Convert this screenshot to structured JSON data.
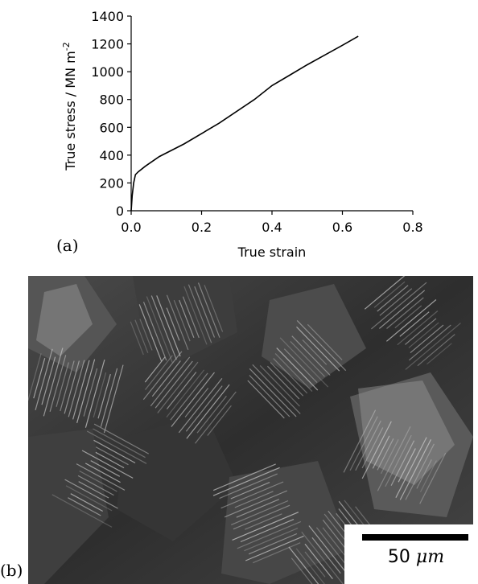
{
  "chart_data": {
    "type": "line",
    "xlabel": "True strain",
    "ylabel": "True stress / MN m",
    "ylabel_exponent": "-2",
    "xlim": [
      0.0,
      0.8
    ],
    "ylim": [
      0,
      1400
    ],
    "xticks": [
      "0.0",
      "0.2",
      "0.4",
      "0.6",
      "0.8"
    ],
    "yticks": [
      "0",
      "200",
      "400",
      "600",
      "800",
      "1000",
      "1200",
      "1400"
    ],
    "grid": false,
    "series": [
      {
        "x": [
          0.0,
          0.003,
          0.007,
          0.012,
          0.02,
          0.04,
          0.08,
          0.15,
          0.25,
          0.35,
          0.4,
          0.45,
          0.5,
          0.55,
          0.6,
          0.645
        ],
        "y": [
          0,
          110,
          200,
          260,
          280,
          320,
          390,
          480,
          630,
          800,
          900,
          975,
          1050,
          1120,
          1190,
          1255
        ]
      }
    ]
  },
  "labels": {
    "panel_a": "(a)",
    "panel_b": "(b)",
    "scalebar_value": "50",
    "scalebar_unit": "μm"
  },
  "micrograph": {
    "description_colors": [
      "#3a3a3a",
      "#8a8a8a",
      "#d8d8d8"
    ]
  }
}
